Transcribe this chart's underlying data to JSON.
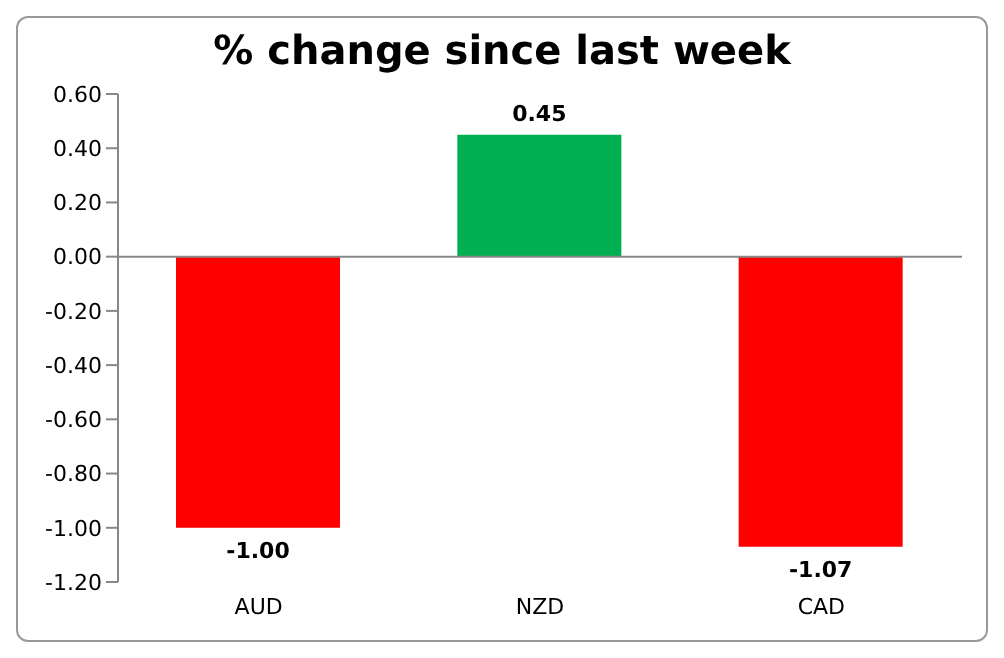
{
  "chart_data": {
    "type": "bar",
    "title": "% change since last week",
    "categories": [
      "AUD",
      "NZD",
      "CAD"
    ],
    "values": [
      -1.0,
      0.45,
      -1.07
    ],
    "colors": [
      "#ff0000",
      "#00b050",
      "#ff0000"
    ],
    "value_labels": [
      "-1.00",
      "0.45",
      "-1.07"
    ],
    "ylim": [
      -1.2,
      0.6
    ],
    "yticks": [
      {
        "value": 0.6,
        "label": "0.60"
      },
      {
        "value": 0.4,
        "label": "0.40"
      },
      {
        "value": 0.2,
        "label": "0.20"
      },
      {
        "value": 0,
        "label": "0.00"
      },
      {
        "value": -0.2,
        "label": "-0.20"
      },
      {
        "value": -0.4,
        "label": "-0.40"
      },
      {
        "value": -0.6,
        "label": "-0.60"
      },
      {
        "value": -0.8,
        "label": "-0.80"
      },
      {
        "value": -1.0,
        "label": "-1.00"
      },
      {
        "value": -1.2,
        "label": "-1.20"
      }
    ],
    "legend": false
  }
}
